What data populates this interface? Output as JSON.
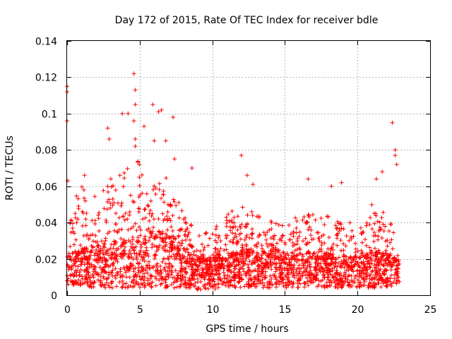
{
  "chart_data": {
    "type": "scatter",
    "title": "Day 172 of 2015, Rate Of TEC Index for receiver bdle",
    "xlabel": "GPS time / hours",
    "ylabel": "ROTI / TECUs",
    "xlim": [
      0,
      25
    ],
    "ylim": [
      0,
      0.14
    ],
    "x_ticks": [
      0,
      5,
      10,
      15,
      20,
      25
    ],
    "x_tick_labels": [
      "0",
      "5",
      "10",
      "15",
      "20",
      "25"
    ],
    "y_ticks": [
      0,
      0.02,
      0.04,
      0.06,
      0.08,
      0.1,
      0.12,
      0.14
    ],
    "y_tick_labels": [
      "0",
      "0.02",
      "0.04",
      "0.06",
      "0.08",
      "0.1",
      "0.12",
      "0.14"
    ],
    "grid": true,
    "marker": "+",
    "color": "#ff0000",
    "data_x_range": [
      0,
      22.9
    ],
    "series": [
      {
        "name": "ROTI",
        "notable_points": [
          {
            "x": 0.0,
            "y": 0.115
          },
          {
            "x": 0.0,
            "y": 0.112
          },
          {
            "x": 0.0,
            "y": 0.096
          },
          {
            "x": 0.05,
            "y": 0.063
          },
          {
            "x": 1.2,
            "y": 0.066
          },
          {
            "x": 2.8,
            "y": 0.092
          },
          {
            "x": 2.9,
            "y": 0.086
          },
          {
            "x": 3.8,
            "y": 0.1
          },
          {
            "x": 4.2,
            "y": 0.1
          },
          {
            "x": 4.6,
            "y": 0.122
          },
          {
            "x": 4.7,
            "y": 0.113
          },
          {
            "x": 4.7,
            "y": 0.105
          },
          {
            "x": 4.6,
            "y": 0.096
          },
          {
            "x": 4.7,
            "y": 0.086
          },
          {
            "x": 4.7,
            "y": 0.082
          },
          {
            "x": 5.3,
            "y": 0.093
          },
          {
            "x": 5.9,
            "y": 0.105
          },
          {
            "x": 6.0,
            "y": 0.085
          },
          {
            "x": 6.3,
            "y": 0.101
          },
          {
            "x": 6.5,
            "y": 0.102
          },
          {
            "x": 6.8,
            "y": 0.085
          },
          {
            "x": 7.3,
            "y": 0.098
          },
          {
            "x": 7.4,
            "y": 0.075
          },
          {
            "x": 8.6,
            "y": 0.07
          },
          {
            "x": 12.0,
            "y": 0.077
          },
          {
            "x": 12.4,
            "y": 0.066
          },
          {
            "x": 12.8,
            "y": 0.061
          },
          {
            "x": 16.6,
            "y": 0.064
          },
          {
            "x": 18.2,
            "y": 0.06
          },
          {
            "x": 18.9,
            "y": 0.062
          },
          {
            "x": 21.3,
            "y": 0.064
          },
          {
            "x": 21.7,
            "y": 0.068
          },
          {
            "x": 22.4,
            "y": 0.095
          },
          {
            "x": 22.6,
            "y": 0.08
          },
          {
            "x": 22.6,
            "y": 0.077
          },
          {
            "x": 22.7,
            "y": 0.072
          }
        ],
        "envelope": [
          {
            "x": 0,
            "low": 0.006,
            "typical": 0.016,
            "high": 0.05
          },
          {
            "x": 1,
            "low": 0.005,
            "typical": 0.018,
            "high": 0.06
          },
          {
            "x": 2,
            "low": 0.004,
            "typical": 0.019,
            "high": 0.055
          },
          {
            "x": 3,
            "low": 0.004,
            "typical": 0.02,
            "high": 0.065
          },
          {
            "x": 4,
            "low": 0.004,
            "typical": 0.021,
            "high": 0.07
          },
          {
            "x": 5,
            "low": 0.004,
            "typical": 0.022,
            "high": 0.075
          },
          {
            "x": 6,
            "low": 0.004,
            "typical": 0.024,
            "high": 0.07
          },
          {
            "x": 7,
            "low": 0.004,
            "typical": 0.024,
            "high": 0.065
          },
          {
            "x": 8,
            "low": 0.004,
            "typical": 0.018,
            "high": 0.045
          },
          {
            "x": 9,
            "low": 0.003,
            "typical": 0.015,
            "high": 0.035
          },
          {
            "x": 10,
            "low": 0.003,
            "typical": 0.014,
            "high": 0.035
          },
          {
            "x": 11,
            "low": 0.004,
            "typical": 0.016,
            "high": 0.045
          },
          {
            "x": 12,
            "low": 0.004,
            "typical": 0.018,
            "high": 0.05
          },
          {
            "x": 13,
            "low": 0.004,
            "typical": 0.017,
            "high": 0.045
          },
          {
            "x": 14,
            "low": 0.004,
            "typical": 0.017,
            "high": 0.045
          },
          {
            "x": 15,
            "low": 0.004,
            "typical": 0.016,
            "high": 0.04
          },
          {
            "x": 16,
            "low": 0.004,
            "typical": 0.016,
            "high": 0.045
          },
          {
            "x": 17,
            "low": 0.004,
            "typical": 0.017,
            "high": 0.045
          },
          {
            "x": 18,
            "low": 0.004,
            "typical": 0.016,
            "high": 0.045
          },
          {
            "x": 19,
            "low": 0.004,
            "typical": 0.015,
            "high": 0.04
          },
          {
            "x": 20,
            "low": 0.004,
            "typical": 0.015,
            "high": 0.04
          },
          {
            "x": 21,
            "low": 0.004,
            "typical": 0.017,
            "high": 0.05
          },
          {
            "x": 22,
            "low": 0.004,
            "typical": 0.016,
            "high": 0.045
          },
          {
            "x": 22.9,
            "low": 0.006,
            "typical": 0.014,
            "high": 0.03
          }
        ]
      }
    ]
  }
}
